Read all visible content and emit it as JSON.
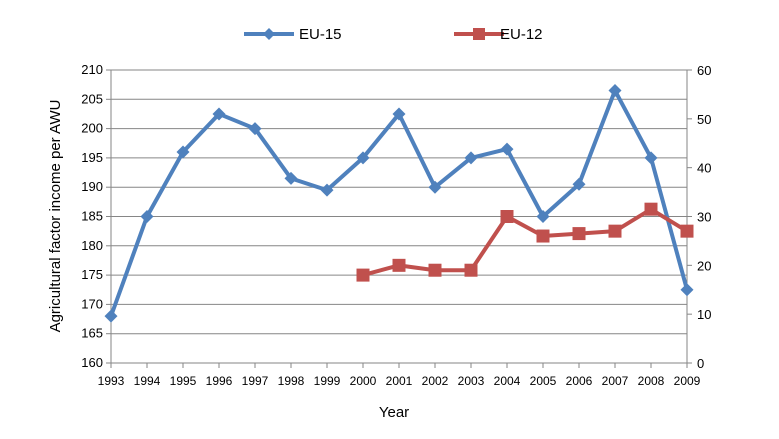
{
  "chart_data": {
    "type": "line",
    "title": "",
    "xlabel": "Year",
    "ylabel": "Agricultural  factor income per AWU",
    "categories": [
      "1993",
      "1994",
      "1995",
      "1996",
      "1997",
      "1998",
      "1999",
      "2000",
      "2001",
      "2002",
      "2003",
      "2004",
      "2005",
      "2006",
      "2007",
      "2008",
      "2009"
    ],
    "y_left": {
      "min": 160,
      "max": 210,
      "step": 5,
      "ticks": [
        "160",
        "165",
        "170",
        "175",
        "180",
        "185",
        "190",
        "195",
        "200",
        "205",
        "210"
      ]
    },
    "y_right": {
      "min": 0,
      "max": 60,
      "step": 10,
      "ticks": [
        "0",
        "10",
        "20",
        "30",
        "40",
        "50",
        "60"
      ]
    },
    "grid": true,
    "legend_position": "top",
    "series": [
      {
        "name": "EU-15",
        "axis": "left",
        "color": "#4F81BD",
        "marker": "diamond",
        "values": [
          168,
          185,
          196,
          202.5,
          200,
          191.5,
          189.5,
          195,
          202.5,
          190,
          195,
          196.5,
          185,
          190.5,
          206.5,
          195,
          172.5
        ]
      },
      {
        "name": "EU-12",
        "axis": "right",
        "color": "#C0504D",
        "marker": "square",
        "values": [
          null,
          null,
          null,
          null,
          null,
          null,
          null,
          18,
          20,
          19,
          19,
          30,
          26,
          26.5,
          27,
          31.5,
          27
        ]
      }
    ]
  }
}
